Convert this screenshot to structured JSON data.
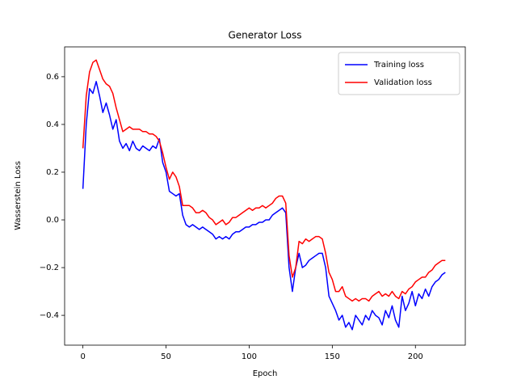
{
  "chart_data": {
    "type": "line",
    "title": "Generator Loss",
    "xlabel": "Epoch",
    "ylabel": "Wasserstein Loss",
    "x": [
      0,
      2,
      4,
      6,
      8,
      10,
      12,
      14,
      16,
      18,
      20,
      22,
      24,
      26,
      28,
      30,
      32,
      34,
      36,
      38,
      40,
      42,
      44,
      46,
      48,
      50,
      52,
      54,
      56,
      58,
      60,
      62,
      64,
      66,
      68,
      70,
      72,
      74,
      76,
      78,
      80,
      82,
      84,
      86,
      88,
      90,
      92,
      94,
      96,
      98,
      100,
      102,
      104,
      106,
      108,
      110,
      112,
      114,
      116,
      118,
      120,
      122,
      124,
      126,
      128,
      130,
      132,
      134,
      136,
      138,
      140,
      142,
      144,
      146,
      148,
      150,
      152,
      154,
      156,
      158,
      160,
      162,
      164,
      166,
      168,
      170,
      172,
      174,
      176,
      178,
      180,
      182,
      184,
      186,
      188,
      190,
      192,
      194,
      196,
      198,
      200,
      202,
      204,
      206,
      208,
      210,
      212,
      214,
      216,
      218
    ],
    "series": [
      {
        "name": "Training loss",
        "color": "#0000ff",
        "values": [
          0.13,
          0.4,
          0.55,
          0.53,
          0.58,
          0.52,
          0.45,
          0.49,
          0.44,
          0.38,
          0.42,
          0.33,
          0.3,
          0.32,
          0.29,
          0.33,
          0.3,
          0.29,
          0.31,
          0.3,
          0.29,
          0.31,
          0.3,
          0.34,
          0.24,
          0.2,
          0.12,
          0.11,
          0.1,
          0.11,
          0.02,
          -0.02,
          -0.03,
          -0.02,
          -0.03,
          -0.04,
          -0.03,
          -0.04,
          -0.05,
          -0.06,
          -0.08,
          -0.07,
          -0.08,
          -0.07,
          -0.08,
          -0.06,
          -0.05,
          -0.05,
          -0.04,
          -0.03,
          -0.03,
          -0.02,
          -0.02,
          -0.01,
          -0.01,
          0.0,
          0.0,
          0.02,
          0.03,
          0.04,
          0.05,
          0.03,
          -0.2,
          -0.3,
          -0.2,
          -0.14,
          -0.2,
          -0.19,
          -0.17,
          -0.16,
          -0.15,
          -0.14,
          -0.14,
          -0.2,
          -0.32,
          -0.35,
          -0.38,
          -0.42,
          -0.4,
          -0.45,
          -0.43,
          -0.46,
          -0.4,
          -0.42,
          -0.44,
          -0.4,
          -0.42,
          -0.38,
          -0.4,
          -0.41,
          -0.44,
          -0.38,
          -0.41,
          -0.36,
          -0.42,
          -0.45,
          -0.32,
          -0.38,
          -0.35,
          -0.3,
          -0.36,
          -0.31,
          -0.33,
          -0.29,
          -0.32,
          -0.28,
          -0.26,
          -0.25,
          -0.23,
          -0.22
        ]
      },
      {
        "name": "Validation loss",
        "color": "#ff0000",
        "values": [
          0.3,
          0.52,
          0.62,
          0.66,
          0.67,
          0.63,
          0.59,
          0.57,
          0.56,
          0.53,
          0.47,
          0.42,
          0.37,
          0.38,
          0.39,
          0.38,
          0.38,
          0.38,
          0.37,
          0.37,
          0.36,
          0.36,
          0.35,
          0.33,
          0.28,
          0.22,
          0.17,
          0.2,
          0.18,
          0.14,
          0.06,
          0.06,
          0.06,
          0.05,
          0.03,
          0.03,
          0.04,
          0.03,
          0.01,
          0.0,
          -0.02,
          -0.01,
          0.0,
          -0.02,
          -0.01,
          0.01,
          0.01,
          0.02,
          0.03,
          0.04,
          0.05,
          0.04,
          0.05,
          0.05,
          0.06,
          0.05,
          0.06,
          0.07,
          0.09,
          0.1,
          0.1,
          0.07,
          -0.15,
          -0.24,
          -0.2,
          -0.09,
          -0.1,
          -0.08,
          -0.09,
          -0.08,
          -0.07,
          -0.07,
          -0.08,
          -0.14,
          -0.22,
          -0.25,
          -0.3,
          -0.3,
          -0.28,
          -0.32,
          -0.33,
          -0.34,
          -0.33,
          -0.34,
          -0.33,
          -0.33,
          -0.34,
          -0.32,
          -0.31,
          -0.3,
          -0.32,
          -0.31,
          -0.32,
          -0.3,
          -0.32,
          -0.33,
          -0.3,
          -0.31,
          -0.29,
          -0.28,
          -0.26,
          -0.25,
          -0.24,
          -0.24,
          -0.22,
          -0.21,
          -0.19,
          -0.18,
          -0.17,
          -0.17
        ]
      }
    ],
    "xlim": [
      -11,
      230
    ],
    "xticks": [
      0,
      50,
      100,
      150,
      200
    ],
    "ylim": [
      -0.525,
      0.725
    ],
    "yticks": [
      {
        "value": -0.4,
        "label": "−0.4"
      },
      {
        "value": -0.2,
        "label": "−0.2"
      },
      {
        "value": 0,
        "label": "0.0"
      },
      0.2,
      0.4,
      0.6
    ],
    "legend": "upper right"
  }
}
